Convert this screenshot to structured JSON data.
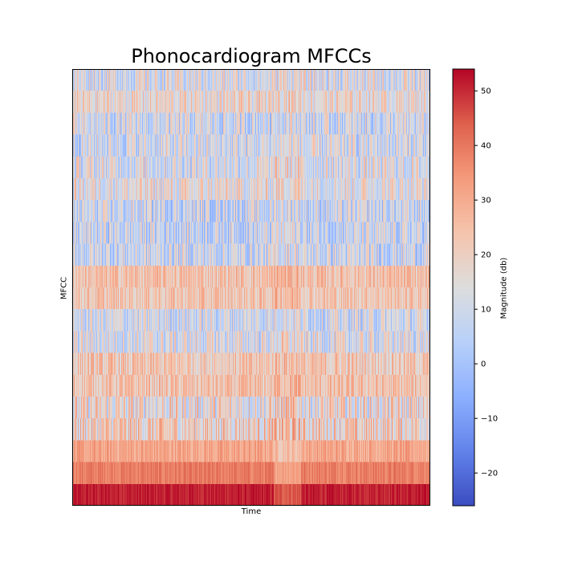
{
  "chart_data": {
    "type": "heatmap",
    "title": "Phonocardiogram MFCCs",
    "xlabel": "Time",
    "ylabel": "MFCC",
    "colorbar": {
      "label": "Magnitude (db)",
      "ticks": [
        -20,
        -10,
        0,
        10,
        20,
        30,
        40,
        50
      ],
      "range": [
        -26,
        54
      ],
      "colormap": "coolwarm"
    },
    "n_time_frames": 446,
    "rows": [
      {
        "mfcc": 1,
        "mean": 51,
        "jitter": 3
      },
      {
        "mfcc": 2,
        "mean": 39,
        "jitter": 4
      },
      {
        "mfcc": 3,
        "mean": 31,
        "jitter": 6
      },
      {
        "mfcc": 4,
        "mean": 20,
        "jitter": 16
      },
      {
        "mfcc": 5,
        "mean": 16,
        "jitter": 17
      },
      {
        "mfcc": 6,
        "mean": 23,
        "jitter": 10
      },
      {
        "mfcc": 7,
        "mean": 22,
        "jitter": 11
      },
      {
        "mfcc": 8,
        "mean": 12,
        "jitter": 15
      },
      {
        "mfcc": 9,
        "mean": 10,
        "jitter": 14
      },
      {
        "mfcc": 10,
        "mean": 23,
        "jitter": 9
      },
      {
        "mfcc": 11,
        "mean": 24,
        "jitter": 9
      },
      {
        "mfcc": 12,
        "mean": 9,
        "jitter": 15
      },
      {
        "mfcc": 13,
        "mean": 8,
        "jitter": 15
      },
      {
        "mfcc": 14,
        "mean": 8,
        "jitter": 15
      },
      {
        "mfcc": 15,
        "mean": 15,
        "jitter": 14
      },
      {
        "mfcc": 16,
        "mean": 12,
        "jitter": 15
      },
      {
        "mfcc": 17,
        "mean": 10,
        "jitter": 15
      },
      {
        "mfcc": 18,
        "mean": 9,
        "jitter": 15
      },
      {
        "mfcc": 19,
        "mean": 17,
        "jitter": 12
      },
      {
        "mfcc": 20,
        "mean": 12,
        "jitter": 15
      }
    ]
  }
}
